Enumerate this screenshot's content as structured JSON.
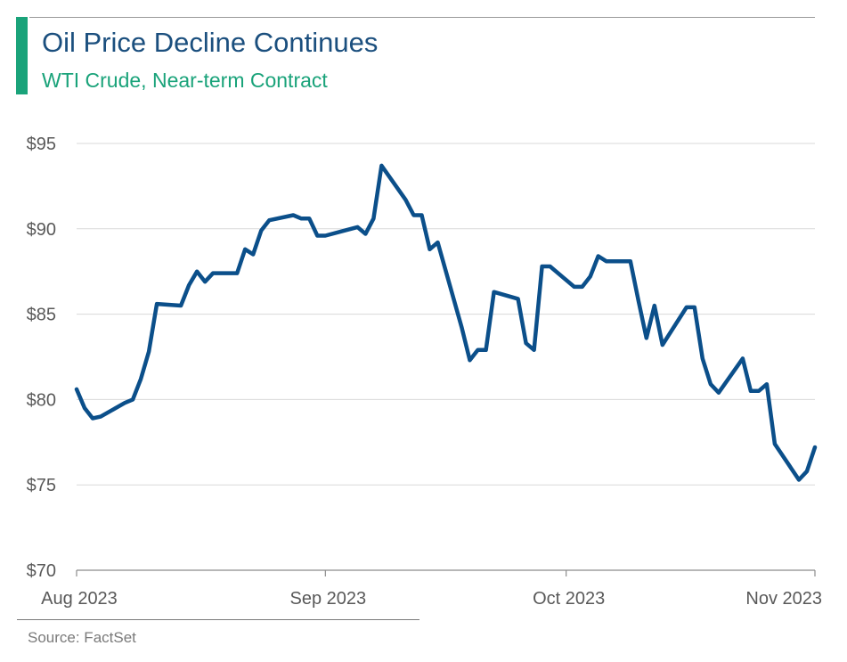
{
  "header": {
    "title": "Oil Price Decline Continues",
    "subtitle": "WTI Crude, Near-term Contract"
  },
  "footer": {
    "source": "Source: FactSet"
  },
  "colors": {
    "accent": "#1aa37a",
    "title": "#1b4f7e",
    "line": "#0b4f8a",
    "grid": "#d9d9d9",
    "text": "#595959"
  },
  "chart_data": {
    "type": "line",
    "title": "Oil Price Decline Continues",
    "subtitle": "WTI Crude, Near-term Contract",
    "xlabel": "",
    "ylabel": "",
    "xlim": [
      "2023-08-01",
      "2023-11-01"
    ],
    "ylim": [
      70,
      95
    ],
    "grid": true,
    "legend": "none",
    "x_ticks": [
      {
        "date": "2023-08-01",
        "label": "Aug 2023"
      },
      {
        "date": "2023-09-01",
        "label": "Sep 2023"
      },
      {
        "date": "2023-10-01",
        "label": "Oct 2023"
      },
      {
        "date": "2023-11-01",
        "label": "Nov 2023"
      }
    ],
    "y_ticks": [
      {
        "value": 70,
        "label": "$70"
      },
      {
        "value": 75,
        "label": "$75"
      },
      {
        "value": 80,
        "label": "$80"
      },
      {
        "value": 85,
        "label": "$85"
      },
      {
        "value": 90,
        "label": "$90"
      },
      {
        "value": 95,
        "label": "$95"
      }
    ],
    "series": [
      {
        "x": [
          "2023-08-01",
          "2023-08-02",
          "2023-08-03",
          "2023-08-04",
          "2023-08-07",
          "2023-08-08",
          "2023-08-09",
          "2023-08-10",
          "2023-08-11",
          "2023-08-14",
          "2023-08-15",
          "2023-08-16",
          "2023-08-17",
          "2023-08-18",
          "2023-08-21",
          "2023-08-22",
          "2023-08-23",
          "2023-08-24",
          "2023-08-25",
          "2023-08-28",
          "2023-08-29",
          "2023-08-30",
          "2023-08-31",
          "2023-09-01",
          "2023-09-05",
          "2023-09-06",
          "2023-09-07",
          "2023-09-08",
          "2023-09-11",
          "2023-09-12",
          "2023-09-13",
          "2023-09-14",
          "2023-09-15",
          "2023-09-18",
          "2023-09-19",
          "2023-09-20",
          "2023-09-21",
          "2023-09-22",
          "2023-09-25",
          "2023-09-26",
          "2023-09-27",
          "2023-09-28",
          "2023-09-29",
          "2023-10-02",
          "2023-10-03",
          "2023-10-04",
          "2023-10-05",
          "2023-10-06",
          "2023-10-09",
          "2023-10-10",
          "2023-10-11",
          "2023-10-12",
          "2023-10-13",
          "2023-10-16",
          "2023-10-17",
          "2023-10-18",
          "2023-10-19",
          "2023-10-20",
          "2023-10-23",
          "2023-10-24",
          "2023-10-25",
          "2023-10-26",
          "2023-10-27",
          "2023-10-30",
          "2023-10-31",
          "2023-11-01"
        ],
        "values": [
          80.6,
          79.5,
          78.9,
          79.0,
          79.8,
          80.0,
          81.2,
          82.8,
          85.6,
          85.5,
          86.7,
          87.5,
          86.9,
          87.4,
          87.4,
          88.8,
          88.5,
          89.9,
          90.5,
          90.8,
          90.6,
          90.6,
          89.6,
          89.6,
          90.1,
          89.7,
          90.6,
          93.7,
          91.7,
          90.8,
          90.8,
          88.8,
          89.2,
          84.2,
          82.3,
          82.9,
          82.9,
          86.3,
          85.9,
          83.3,
          82.9,
          87.8,
          87.8,
          86.6,
          86.6,
          87.2,
          88.4,
          88.1,
          88.1,
          85.8,
          83.6,
          85.5,
          83.2,
          85.4,
          85.4,
          82.4,
          80.9,
          80.4,
          82.4,
          80.5,
          80.5,
          80.9,
          77.4,
          75.3,
          75.8,
          77.2
        ]
      }
    ]
  }
}
